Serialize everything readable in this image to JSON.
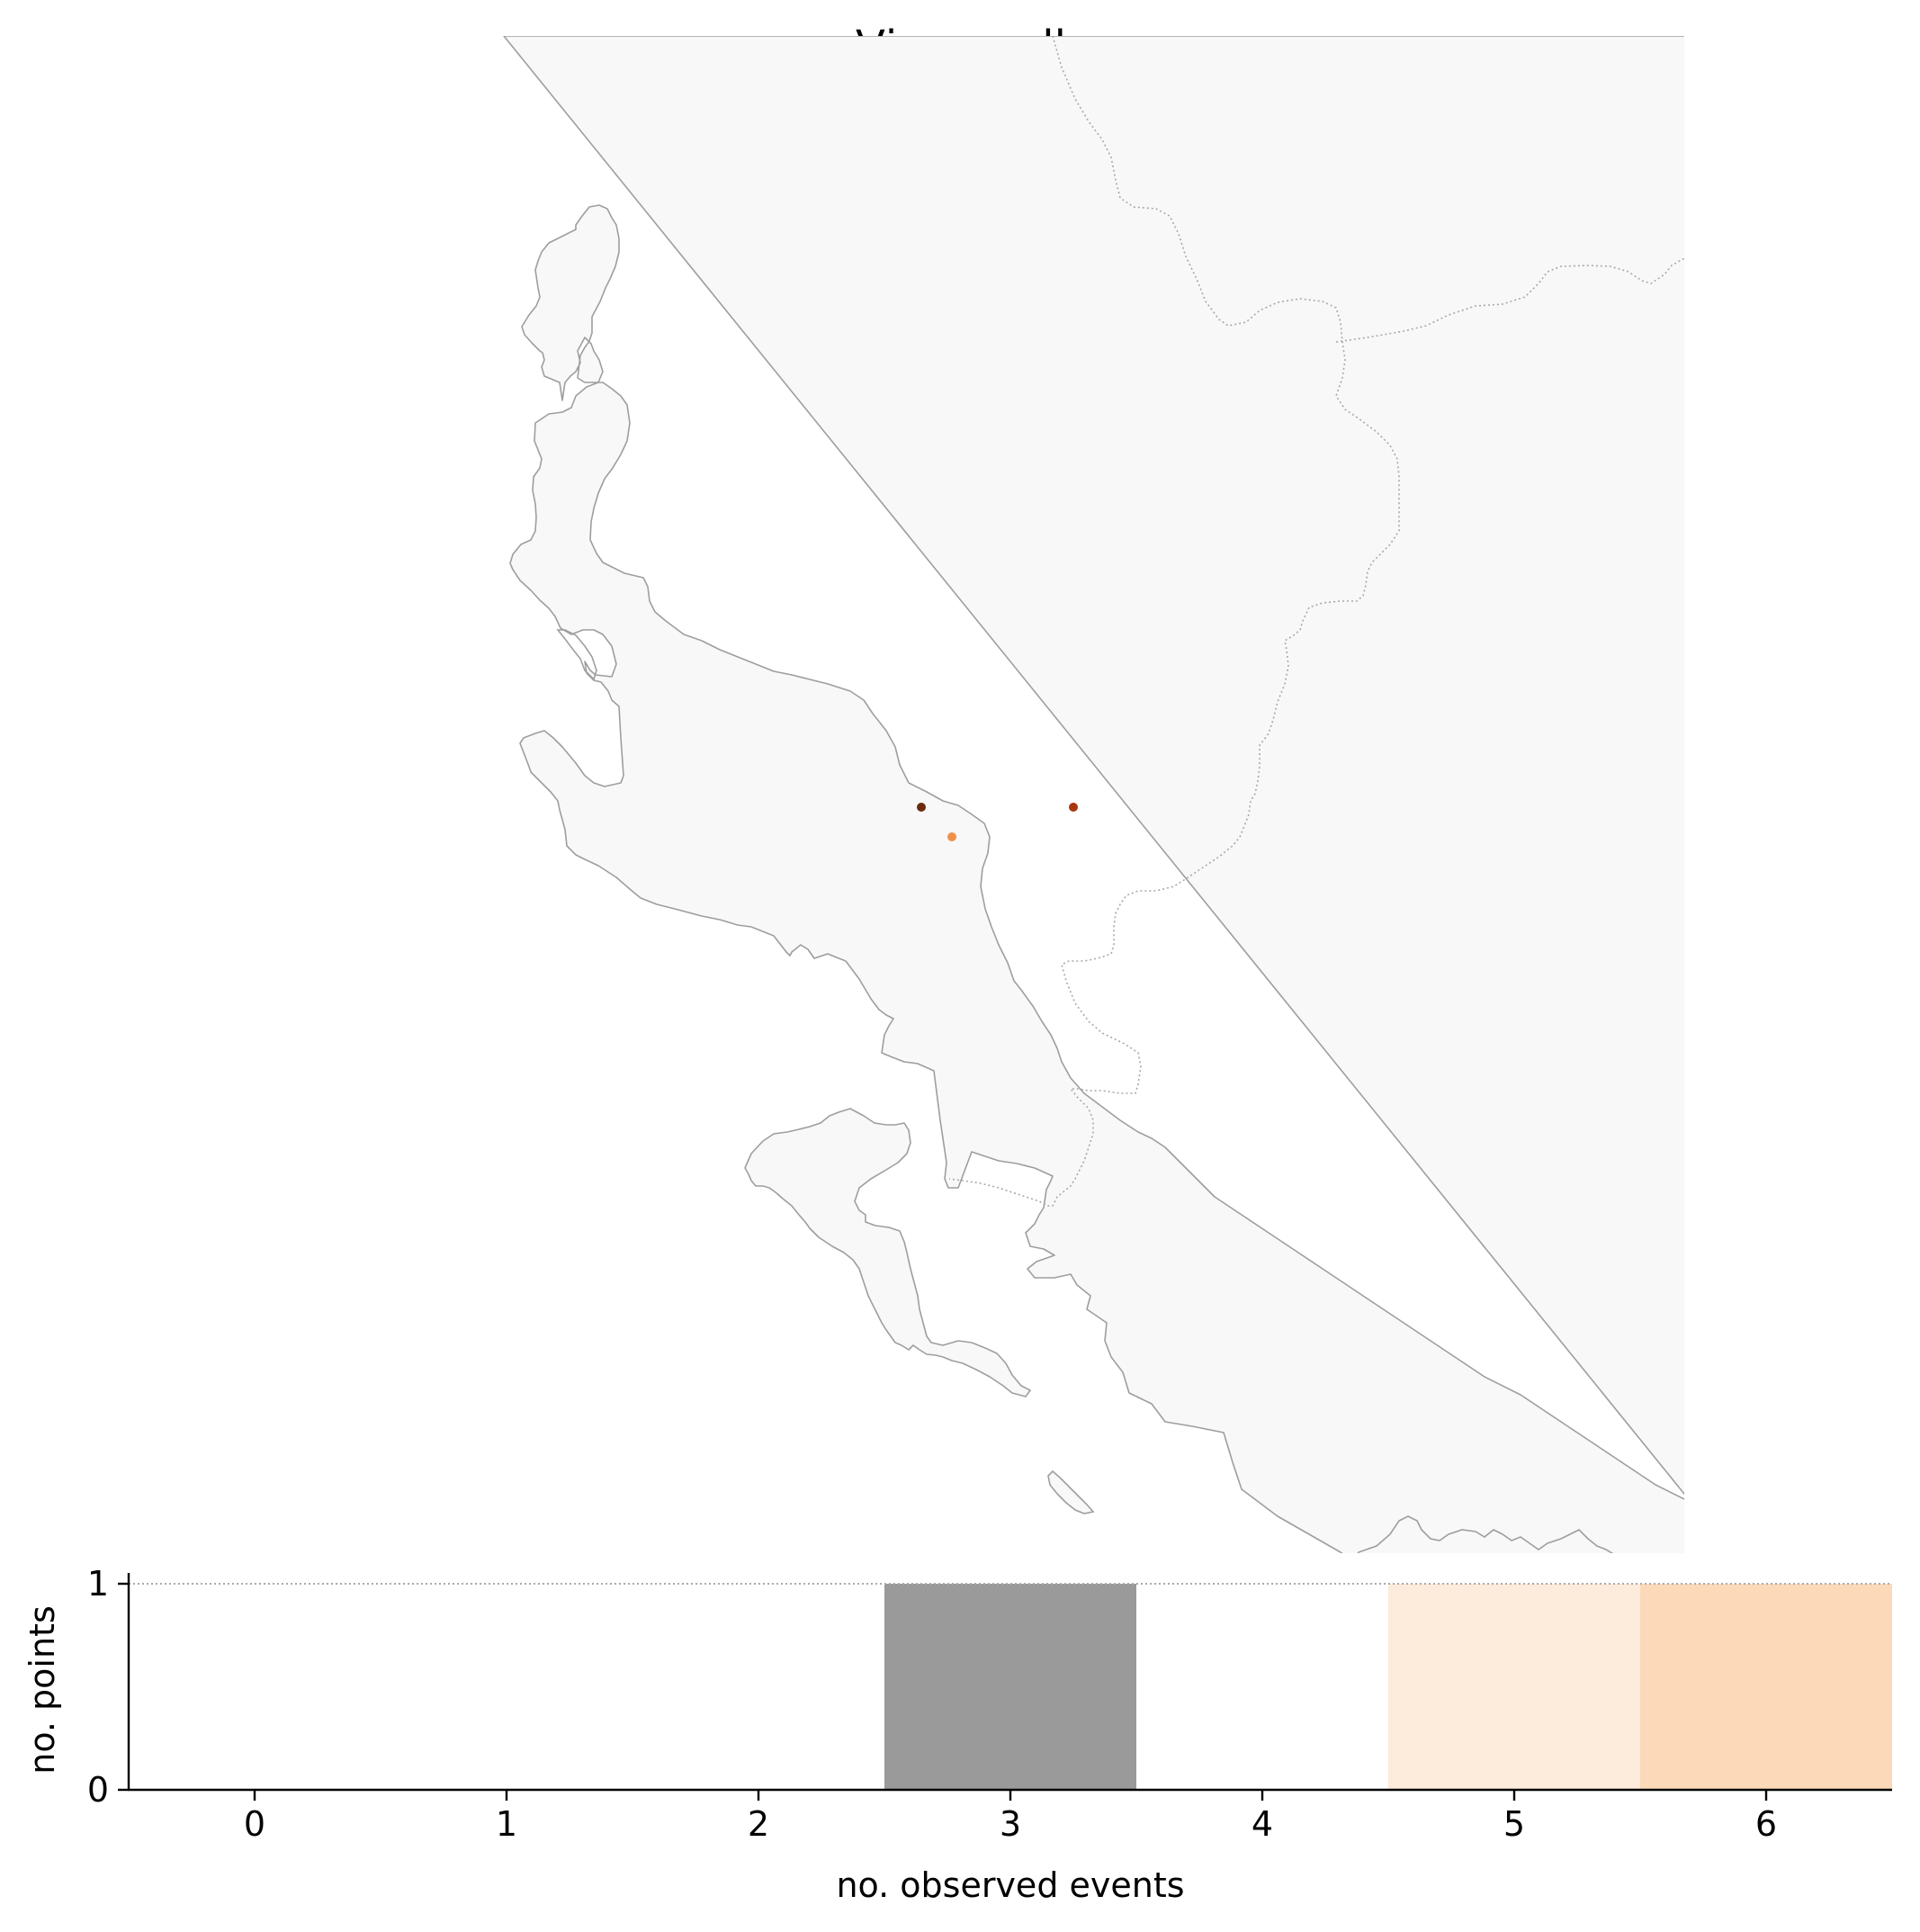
{
  "figure": {
    "title": "Vjosa - all"
  },
  "map": {
    "land_color": "#f8f8f8",
    "coast_color": "#9e9e9e",
    "border_color": "#a8a8a8",
    "points": [
      {
        "color": "#6b2a0c"
      },
      {
        "color": "#a8360c"
      },
      {
        "color": "#f0914a"
      }
    ]
  },
  "histogram": {
    "xlabel": "no. observed events",
    "ylabel": "no. points",
    "x_ticks": [
      "0",
      "1",
      "2",
      "3",
      "4",
      "5",
      "6"
    ],
    "y_ticks": [
      "0",
      "1"
    ]
  },
  "chart_data": {
    "type": "bar",
    "categories": [
      0,
      1,
      2,
      3,
      4,
      5,
      6
    ],
    "values": [
      0,
      0,
      0,
      1,
      0,
      1,
      1
    ],
    "bar_colors": [
      "#ffffff",
      "#ffffff",
      "#ffffff",
      "#9a9a9a",
      "#ffffff",
      "#fdebdb",
      "#fcd9b9"
    ],
    "xlabel": "no. observed events",
    "ylabel": "no. points",
    "xlim": [
      -0.5,
      6.5
    ],
    "ylim": [
      0,
      1
    ],
    "ref_line_y": 1,
    "grid": false
  }
}
